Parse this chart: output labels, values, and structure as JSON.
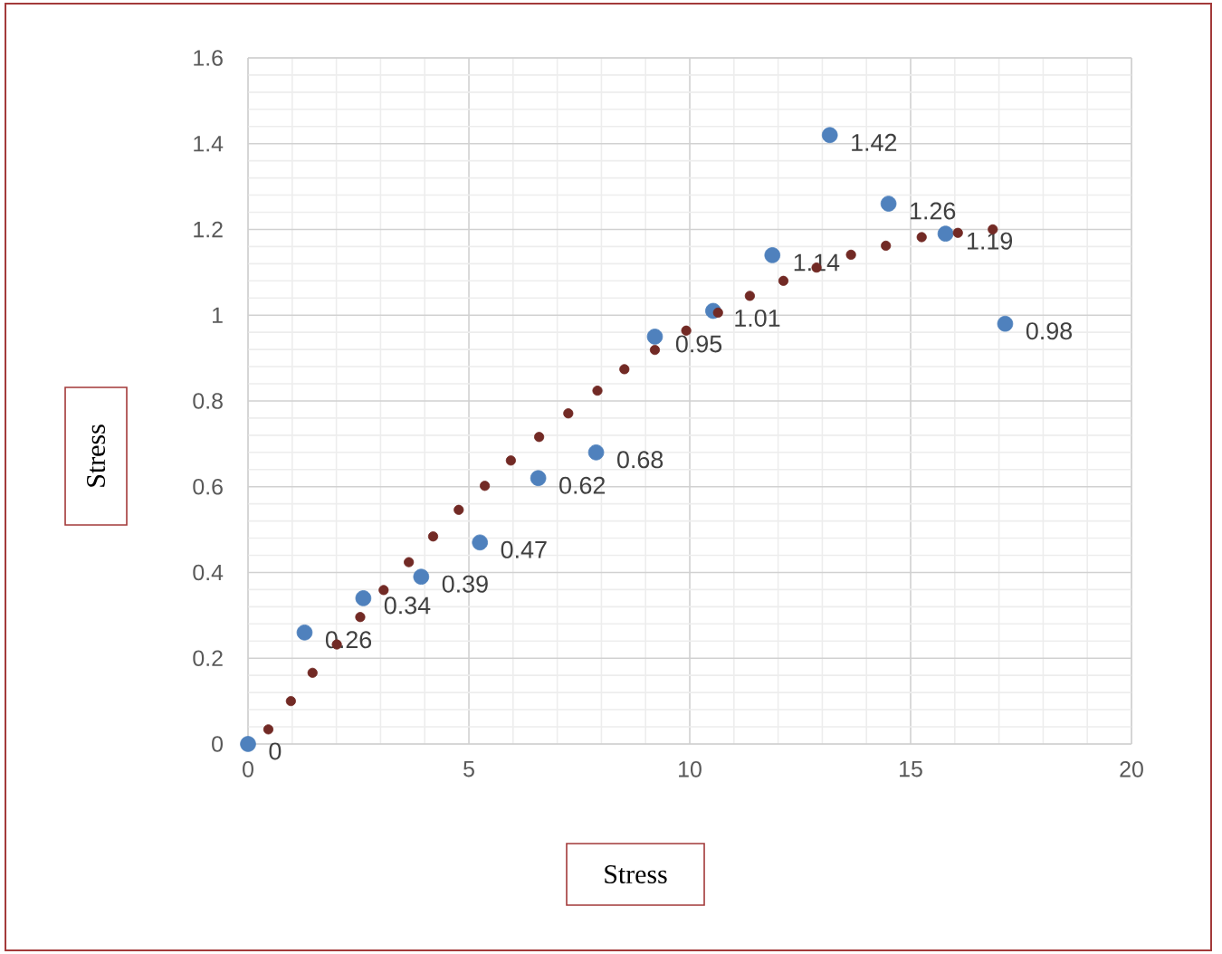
{
  "chart_data": {
    "type": "scatter",
    "xlabel": "Stress",
    "ylabel": "Stress",
    "xlim": [
      0,
      20
    ],
    "ylim": [
      0,
      1.6
    ],
    "xticks": [
      0,
      5,
      10,
      15,
      20
    ],
    "yticks": [
      0,
      0.2,
      0.4,
      0.6,
      0.8,
      1,
      1.2,
      1.4,
      1.6
    ],
    "grid": true,
    "marker": "circle",
    "series": [
      {
        "color": "#4f81bd",
        "x": [
          0,
          1.28,
          2.61,
          3.92,
          5.25,
          6.57,
          7.88,
          9.21,
          10.53,
          11.87,
          13.17,
          14.5,
          15.79,
          17.14
        ],
        "values": [
          0,
          0.26,
          0.34,
          0.39,
          0.47,
          0.62,
          0.68,
          0.95,
          1.01,
          1.14,
          1.42,
          1.26,
          1.19,
          0.98
        ],
        "value_labels": [
          "0",
          "0.26",
          "0.34",
          "0.39",
          "0.47",
          "0.62",
          "0.68",
          "0.95",
          "1.01",
          "1.14",
          "1.42",
          "1.26",
          "1.19",
          "0.98"
        ]
      },
      {
        "color": "#722a25",
        "x": [
          0.46,
          0.97,
          1.46,
          2.01,
          2.54,
          3.07,
          3.64,
          4.19,
          4.77,
          5.36,
          5.95,
          6.59,
          7.25,
          7.91,
          8.52,
          9.21,
          9.92,
          10.64,
          11.36,
          12.12,
          12.87,
          13.65,
          14.44,
          15.25,
          16.07,
          16.86
        ],
        "values": [
          0.034,
          0.1,
          0.166,
          0.232,
          0.296,
          0.359,
          0.424,
          0.484,
          0.546,
          0.602,
          0.661,
          0.716,
          0.771,
          0.824,
          0.874,
          0.919,
          0.964,
          1.006,
          1.045,
          1.08,
          1.111,
          1.141,
          1.162,
          1.182,
          1.192,
          1.2
        ]
      }
    ]
  }
}
